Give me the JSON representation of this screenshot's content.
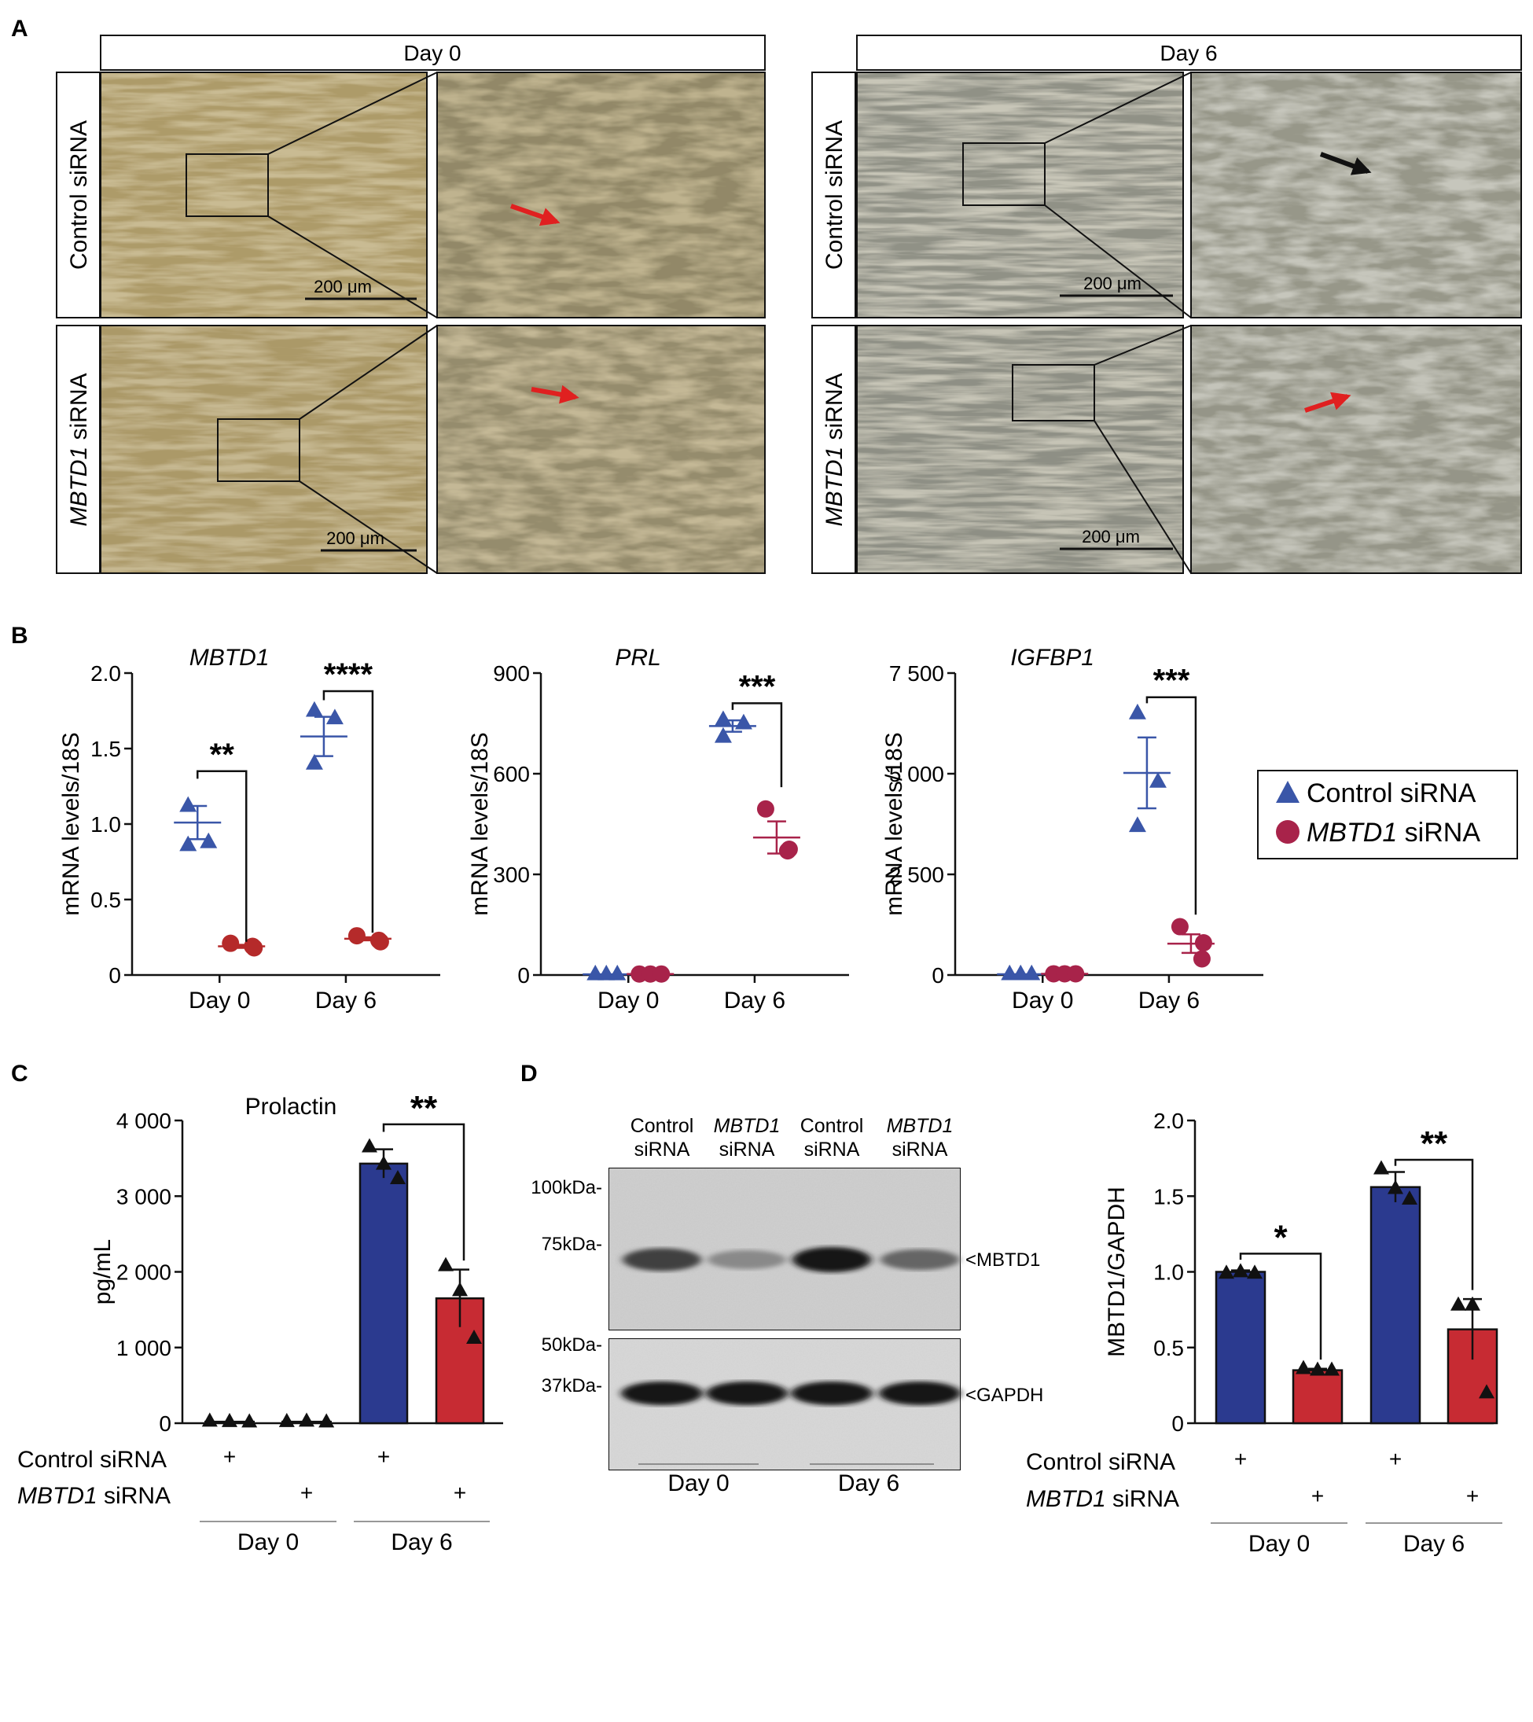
{
  "panel_labels": {
    "a": "A",
    "b": "B",
    "c": "C",
    "d": "D"
  },
  "panel_a": {
    "headers": [
      "Day 0",
      "Day 6"
    ],
    "rows": [
      {
        "label": "Control siRNA"
      },
      {
        "label_gene": "MBTD1",
        "label_suffix": " siRNA"
      }
    ],
    "scale_bar": "200 μm",
    "arrow_colors": {
      "day0_control": "#e02020",
      "day0_mbtd1": "#e02020",
      "day6_control": "#111111",
      "day6_mbtd1": "#e02020"
    }
  },
  "legend": {
    "control": "Control siRNA",
    "mbtd1_gene": "MBTD1",
    "mbtd1_suffix": " siRNA"
  },
  "colors": {
    "control": "#3a56a8",
    "mbtd1": "#a8234a",
    "mbtd1_b1": "#b52a2a",
    "bar_control": "#2b3a8f",
    "bar_mbtd1": "#c72b33"
  },
  "chart_data": [
    {
      "type": "scatter",
      "title": "MBTD1",
      "ylabel": "mRNA levels/18S",
      "categories": [
        "Day 0",
        "Day 6"
      ],
      "ylim": [
        0,
        2.0
      ],
      "yticks": [
        "0",
        "0.5",
        "1.0",
        "1.5",
        "2.0"
      ],
      "ytick_values": [
        0,
        0.5,
        1.0,
        1.5,
        2.0
      ],
      "series": [
        {
          "group": "control",
          "points": [
            [
              1.12,
              0.88,
              0.86
            ],
            [
              1.75,
              1.7,
              1.4
            ]
          ],
          "mean": [
            1.01,
            1.58
          ],
          "sem": [
            0.11,
            0.13
          ]
        },
        {
          "group": "mbtd1",
          "points": [
            [
              0.21,
              0.18,
              0.19
            ],
            [
              0.26,
              0.22,
              0.23
            ]
          ],
          "mean": [
            0.19,
            0.24
          ],
          "sem": [
            0.01,
            0.01
          ]
        }
      ],
      "significance": [
        "**",
        "****"
      ]
    },
    {
      "type": "scatter",
      "title": "PRL",
      "ylabel": "mRNA levels/18S",
      "categories": [
        "Day 0",
        "Day 6"
      ],
      "ylim": [
        0,
        900
      ],
      "yticks": [
        "0",
        "300",
        "600",
        "900"
      ],
      "ytick_values": [
        0,
        300,
        600,
        900
      ],
      "series": [
        {
          "group": "control",
          "points": [
            [
              2,
              2,
              2
            ],
            [
              760,
              750,
              710
            ]
          ],
          "mean": [
            2,
            742
          ],
          "sem": [
            0,
            17
          ]
        },
        {
          "group": "mbtd1",
          "points": [
            [
              3,
              3,
              3
            ],
            [
              495,
              375,
              370
            ]
          ],
          "mean": [
            3,
            410
          ],
          "sem": [
            0,
            48
          ]
        }
      ],
      "significance": [
        "***"
      ]
    },
    {
      "type": "scatter",
      "title": "IGFBP1",
      "ylabel": "mRNA levels/18S",
      "categories": [
        "Day 0",
        "Day 6"
      ],
      "ylim": [
        0,
        7500
      ],
      "yticks": [
        "0",
        "2500",
        "5000",
        "7500"
      ],
      "ytick_labels": [
        "0",
        "2 500",
        "5 000",
        "7 500"
      ],
      "ytick_values": [
        0,
        2500,
        5000,
        7500
      ],
      "series": [
        {
          "group": "control",
          "points": [
            [
              20,
              20,
              20
            ],
            [
              6500,
              4800,
              3700
            ]
          ],
          "mean": [
            20,
            5020
          ],
          "sem": [
            0,
            880
          ]
        },
        {
          "group": "mbtd1",
          "points": [
            [
              30,
              30,
              30
            ],
            [
              1200,
              800,
              400
            ]
          ],
          "mean": [
            30,
            780
          ],
          "sem": [
            0,
            230
          ]
        }
      ],
      "significance": [
        "***"
      ]
    },
    {
      "type": "bar",
      "title": "Prolactin",
      "ylabel": "pg/mL",
      "ylim": [
        0,
        4000
      ],
      "yticks": [
        "0",
        "1 000",
        "2 000",
        "3 000",
        "4 000"
      ],
      "ytick_values": [
        0,
        1000,
        2000,
        3000,
        4000
      ],
      "bars": [
        {
          "group": "control",
          "day": "Day 0",
          "value": 20,
          "sem": 5,
          "points": [
            25,
            20,
            15
          ]
        },
        {
          "group": "mbtd1",
          "day": "Day 0",
          "value": 20,
          "sem": 5,
          "points": [
            20,
            25,
            15
          ]
        },
        {
          "group": "control",
          "day": "Day 6",
          "value": 3430,
          "sem": 190,
          "points": [
            3650,
            3420,
            3230
          ]
        },
        {
          "group": "mbtd1",
          "day": "Day 6",
          "value": 1650,
          "sem": 380,
          "points": [
            2080,
            1750,
            1120
          ]
        }
      ],
      "significance": [
        "**"
      ],
      "row_labels": [
        "Control siRNA",
        "siRNA"
      ],
      "row_gene": "MBTD1",
      "plus": "+",
      "days": [
        "Day 0",
        "Day 6"
      ]
    },
    {
      "type": "bar",
      "title": "",
      "ylabel": "MBTD1/GAPDH",
      "ylim": [
        0,
        2.0
      ],
      "yticks": [
        "0",
        "0.5",
        "1.0",
        "1.5",
        "2.0"
      ],
      "ytick_values": [
        0,
        0.5,
        1.0,
        1.5,
        2.0
      ],
      "bars": [
        {
          "group": "control",
          "day": "Day 0",
          "value": 1.0,
          "sem": 0.01,
          "points": [
            0.99,
            1.0,
            0.99
          ]
        },
        {
          "group": "mbtd1",
          "day": "Day 0",
          "value": 0.35,
          "sem": 0.01,
          "points": [
            0.36,
            0.35,
            0.35
          ]
        },
        {
          "group": "control",
          "day": "Day 6",
          "value": 1.56,
          "sem": 0.1,
          "points": [
            1.68,
            1.55,
            1.48
          ]
        },
        {
          "group": "mbtd1",
          "day": "Day 6",
          "value": 0.62,
          "sem": 0.2,
          "points": [
            0.78,
            0.78,
            0.2
          ]
        }
      ],
      "significance": [
        "*",
        "**"
      ],
      "row_labels": [
        "Control siRNA",
        "siRNA"
      ],
      "row_gene": "MBTD1",
      "plus": "+",
      "days": [
        "Day 0",
        "Day 6"
      ]
    }
  ],
  "blot": {
    "lanes": [
      {
        "line1": "Control",
        "line2": "siRNA",
        "italic": false
      },
      {
        "line1": "MBTD1",
        "line2": "siRNA",
        "italic": true
      },
      {
        "line1": "Control",
        "line2": "siRNA",
        "italic": false
      },
      {
        "line1": "MBTD1",
        "line2": "siRNA",
        "italic": true
      }
    ],
    "markers_top": [
      "100kDa-",
      "75kDa-"
    ],
    "markers_bottom": [
      "50kDa-",
      "37kDa-"
    ],
    "band_labels": [
      "<MBTD1",
      "<GAPDH"
    ],
    "days": [
      "Day 0",
      "Day 6"
    ],
    "mbtd1_band_intensity": [
      0.75,
      0.35,
      1.0,
      0.55
    ],
    "gapdh_band_intensity": [
      1.0,
      1.0,
      0.95,
      0.9
    ]
  }
}
